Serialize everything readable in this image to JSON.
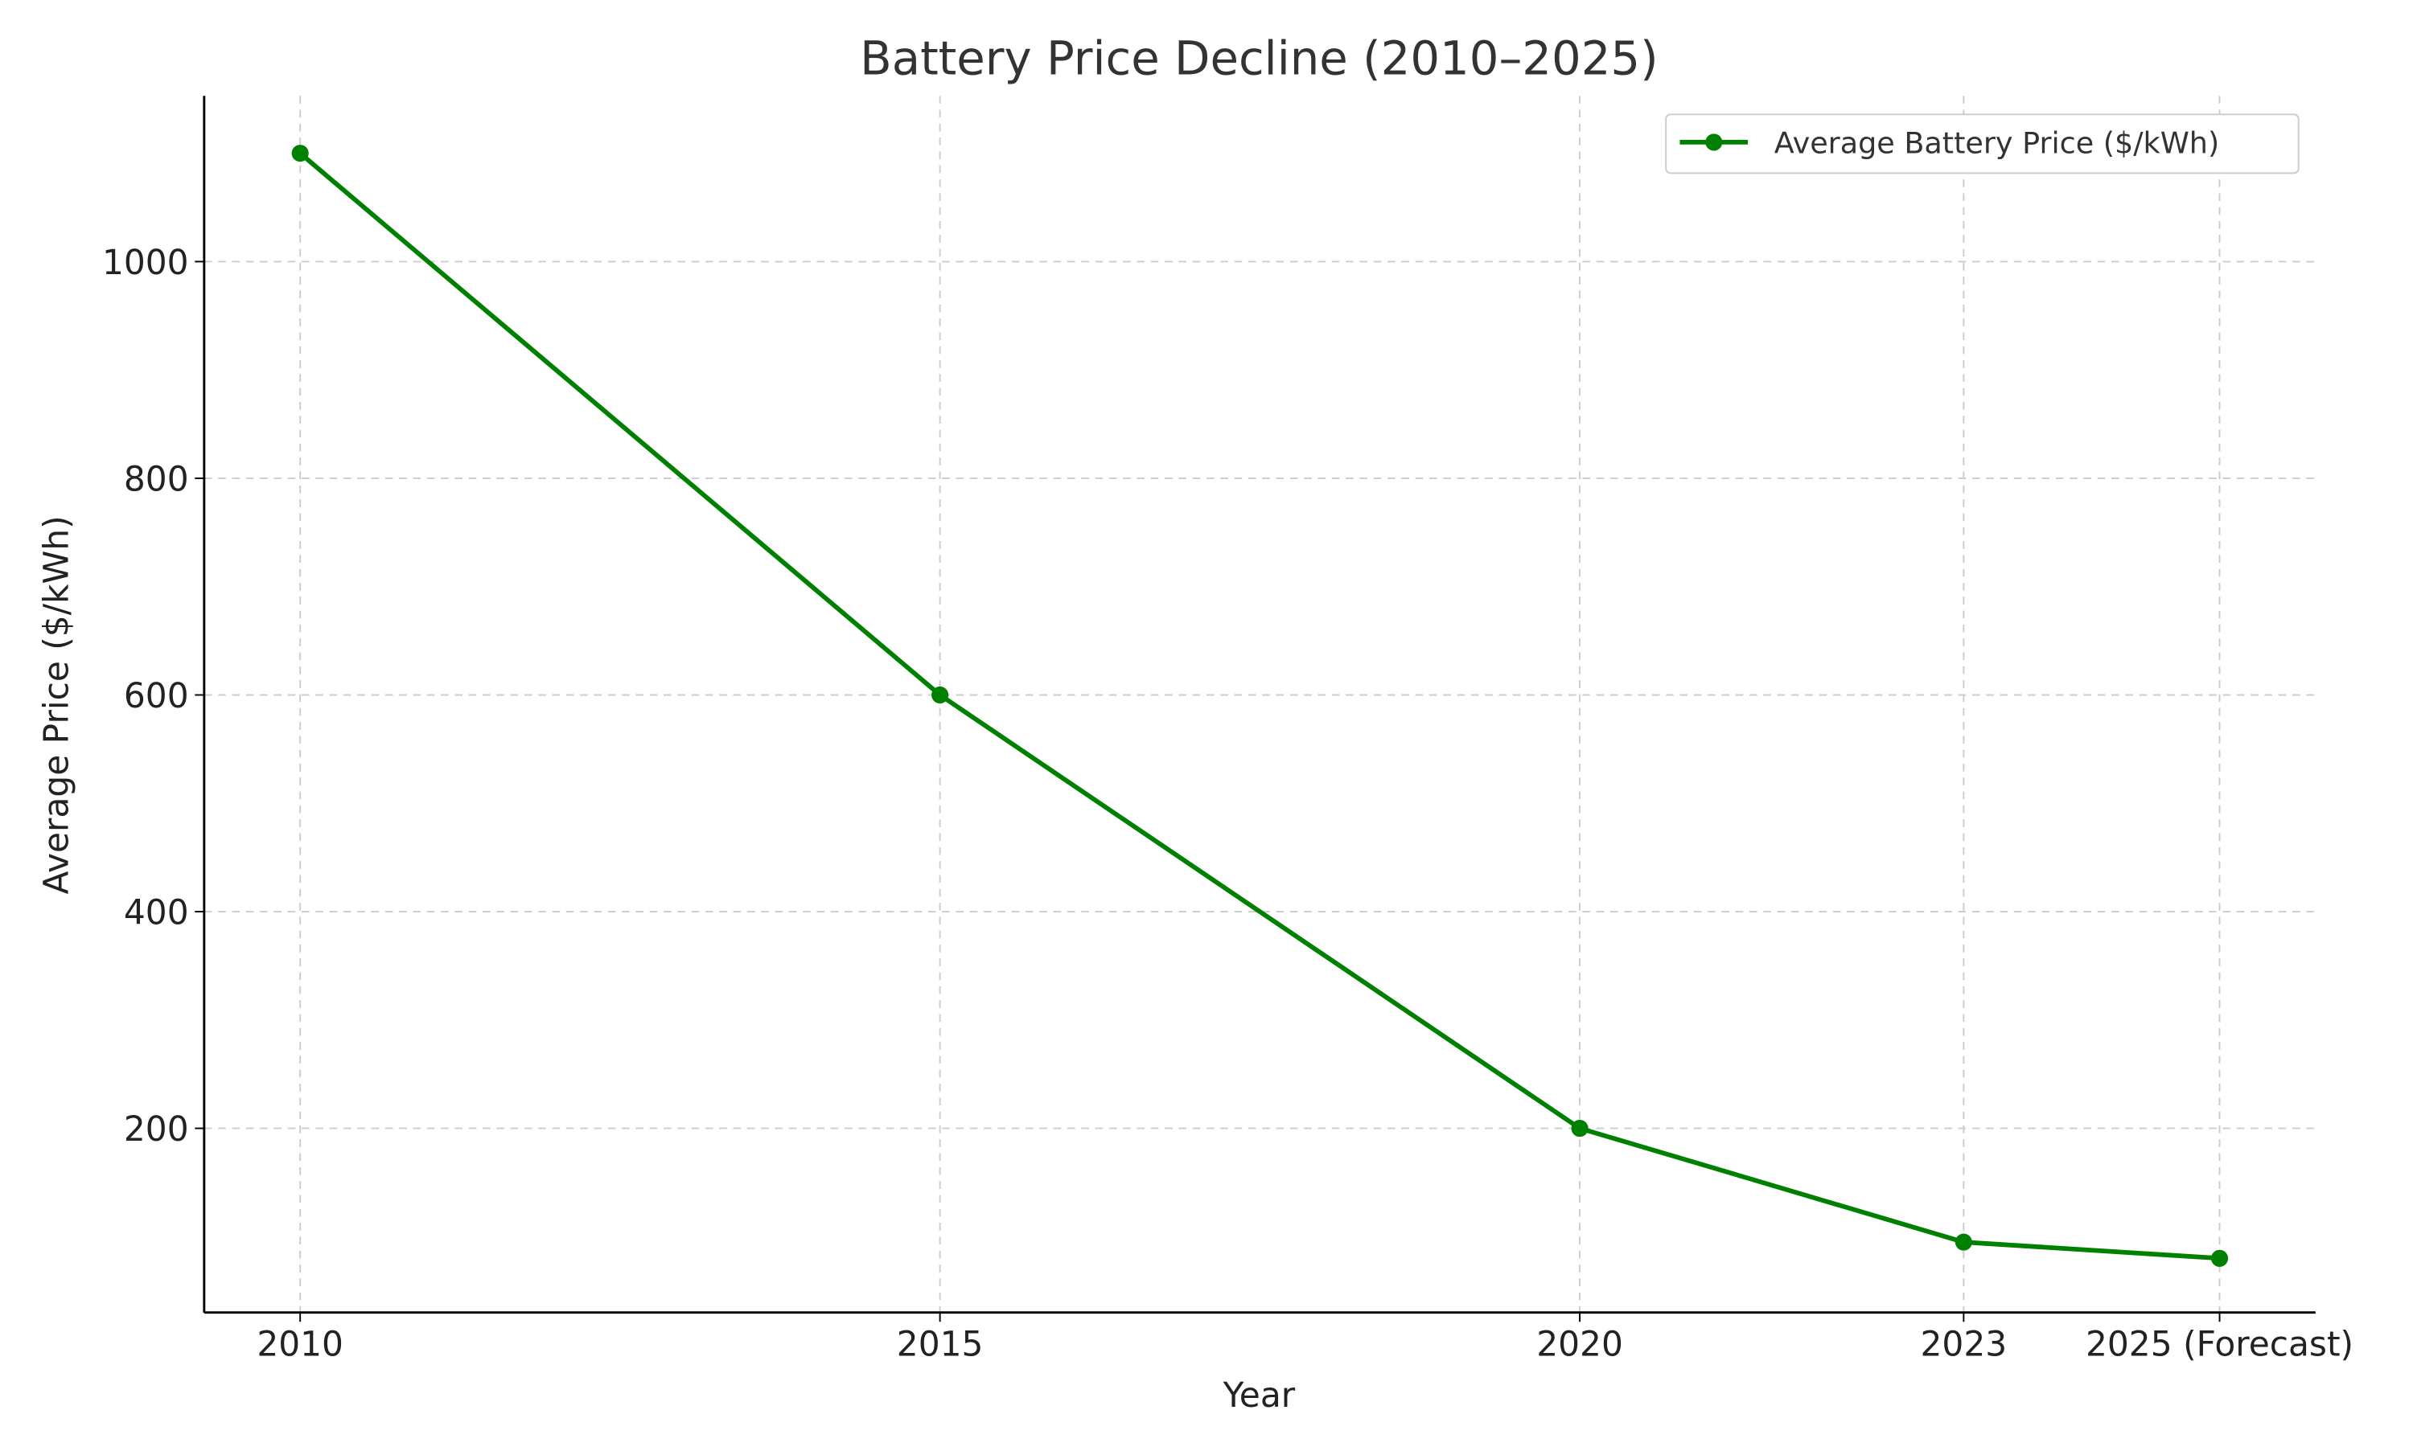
{
  "chart_data": {
    "type": "line",
    "title": "Battery Price Decline (2010–2025)",
    "xlabel": "Year",
    "ylabel": "Average Price ($/kWh)",
    "x": [
      2010,
      2015,
      2020,
      2023,
      2025
    ],
    "x_tick_labels": [
      "2010",
      "2015",
      "2020",
      "2023",
      "2025 (Forecast)"
    ],
    "y_ticks": [
      200,
      400,
      600,
      800,
      1000
    ],
    "xlim": [
      2009.25,
      2025.75
    ],
    "ylim": [
      30,
      1153
    ],
    "grid": true,
    "legend_placement": "top-right",
    "series": [
      {
        "name": "Average Battery Price ($/kWh)",
        "values": [
          1100,
          600,
          200,
          95,
          80
        ],
        "color": "#008000",
        "marker": "circle"
      }
    ]
  }
}
